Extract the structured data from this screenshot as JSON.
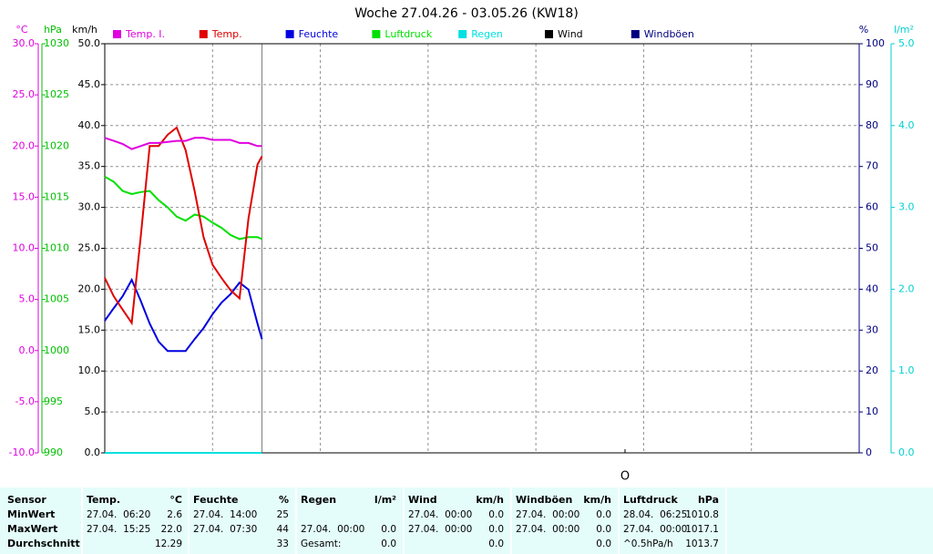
{
  "chart_data": {
    "type": "line",
    "title": "Woche 27.04.26 - 03.05.26 (KW18)",
    "x": [
      0,
      2,
      4,
      6,
      8,
      10,
      12,
      14,
      16,
      18,
      20,
      22,
      24,
      26,
      28,
      30,
      32,
      34,
      35
    ],
    "xlim": [
      0,
      168
    ],
    "xticks": [
      24,
      48,
      72,
      96,
      120,
      144
    ],
    "now_line": 35,
    "grid": true,
    "axes": [
      {
        "unit": "°C",
        "color": "#e000e0",
        "ylim": [
          -10,
          30
        ],
        "yticks": [
          {
            "value": -10,
            "label": "-10.0"
          },
          {
            "value": -5,
            "label": "-5.0"
          },
          {
            "value": 0,
            "label": "0.0"
          },
          {
            "value": 5,
            "label": "5.0"
          },
          {
            "value": 10,
            "label": "10.0"
          },
          {
            "value": 15,
            "label": "15.0"
          },
          {
            "value": 20,
            "label": "20.0"
          },
          {
            "value": 25,
            "label": "25.0"
          },
          {
            "value": 30,
            "label": "30.0"
          }
        ]
      },
      {
        "unit": "hPa",
        "color": "#00c000",
        "ylim": [
          990,
          1030
        ],
        "yticks": [
          990,
          995,
          1000,
          1005,
          1010,
          1015,
          1020,
          1025,
          1030
        ]
      },
      {
        "unit": "km/h",
        "color": "#000000",
        "ylim": [
          0,
          50
        ],
        "yticks": [
          {
            "value": 0,
            "label": "0.0"
          },
          {
            "value": 5,
            "label": "5.0"
          },
          {
            "value": 10,
            "label": "10.0"
          },
          {
            "value": 15,
            "label": "15.0"
          },
          {
            "value": 20,
            "label": "20.0"
          },
          {
            "value": 25,
            "label": "25.0"
          },
          {
            "value": 30,
            "label": "30.0"
          },
          {
            "value": 35,
            "label": "35.0"
          },
          {
            "value": 40,
            "label": "40.0"
          },
          {
            "value": 45,
            "label": "45.0"
          },
          {
            "value": 50,
            "label": "50.0"
          }
        ]
      },
      {
        "unit": "%",
        "color": "#000080",
        "ylim": [
          0,
          100
        ],
        "yticks": [
          0,
          10,
          20,
          30,
          40,
          50,
          60,
          70,
          80,
          90,
          100
        ]
      },
      {
        "unit": "l/m²",
        "color": "#00d0d0",
        "ylim": [
          0,
          5
        ],
        "yticks": [
          {
            "value": 0,
            "label": "0.0"
          },
          {
            "value": 1,
            "label": "1.0"
          },
          {
            "value": 2,
            "label": "2.0"
          },
          {
            "value": 3,
            "label": "3.0"
          },
          {
            "value": 4,
            "label": "4.0"
          },
          {
            "value": 5,
            "label": "5.0"
          }
        ]
      }
    ],
    "series": [
      {
        "name": "Temp. I.",
        "color": "#e000e0",
        "axis": 0,
        "values": [
          20.8,
          20.5,
          20.2,
          19.7,
          20.0,
          20.3,
          20.3,
          20.4,
          20.5,
          20.5,
          20.8,
          20.8,
          20.6,
          20.6,
          20.6,
          20.3,
          20.3,
          20.0,
          20.0
        ]
      },
      {
        "name": "Temp.",
        "color": "#e00000",
        "axis": 0,
        "values": [
          7.1,
          5.3,
          4.0,
          2.7,
          11.1,
          20.0,
          20.0,
          21.1,
          21.8,
          19.6,
          15.6,
          11.1,
          8.4,
          7.1,
          5.9,
          5.1,
          12.9,
          18.2,
          19.0
        ]
      },
      {
        "name": "Feuchte",
        "color": "#0000e0",
        "axis": 3,
        "values": [
          32.3,
          35.4,
          38.3,
          42.3,
          37.2,
          31.6,
          27.2,
          24.9,
          24.9,
          24.9,
          27.8,
          30.5,
          33.9,
          36.7,
          38.8,
          41.6,
          39.9,
          31.6,
          27.8
        ]
      },
      {
        "name": "Luftdruck",
        "color": "#00e000",
        "axis": 1,
        "values": [
          1017.0,
          1016.5,
          1015.6,
          1015.3,
          1015.5,
          1015.6,
          1014.7,
          1014.0,
          1013.1,
          1012.7,
          1013.3,
          1013.1,
          1012.5,
          1012.0,
          1011.3,
          1010.9,
          1011.1,
          1011.1,
          1010.9
        ]
      },
      {
        "name": "Regen",
        "color": "#00e0e0",
        "axis": 4,
        "values": [
          0,
          0,
          0,
          0,
          0,
          0,
          0,
          0,
          0,
          0,
          0,
          0,
          0,
          0,
          0,
          0,
          0,
          0,
          0
        ]
      },
      {
        "name": "Wind",
        "color": "#000000",
        "axis": 2,
        "values": [
          0,
          0,
          0,
          0,
          0,
          0,
          0,
          0,
          0,
          0,
          0,
          0,
          0,
          0,
          0,
          0,
          0,
          0,
          0
        ]
      },
      {
        "name": "Windböen",
        "color": "#000080",
        "axis": 2,
        "values": [
          0,
          0,
          0,
          0,
          0,
          0,
          0,
          0,
          0,
          0,
          0,
          0,
          0,
          0,
          0,
          0,
          0,
          0,
          0
        ]
      }
    ],
    "annotation": "O"
  },
  "table": {
    "sensor_header": "Sensor",
    "columns": [
      {
        "name": "Temp.",
        "unit": "°C"
      },
      {
        "name": "Feuchte",
        "unit": "%"
      },
      {
        "name": "Regen",
        "unit": "l/m²"
      },
      {
        "name": "Wind",
        "unit": "km/h"
      },
      {
        "name": "Windböen",
        "unit": "km/h"
      },
      {
        "name": "Luftdruck",
        "unit": "hPa"
      }
    ],
    "rows": [
      {
        "label": "MinWert",
        "cells": [
          [
            "27.04.  06:20",
            "2.6"
          ],
          [
            "27.04.  14:00",
            "25"
          ],
          [
            null,
            null
          ],
          [
            "27.04.  00:00",
            "0.0"
          ],
          [
            "27.04.  00:00",
            "0.0"
          ],
          [
            "28.04.  06:25",
            "1010.8"
          ]
        ]
      },
      {
        "label": "MaxWert",
        "cells": [
          [
            "27.04.  15:25",
            "22.0"
          ],
          [
            "27.04.  07:30",
            "44"
          ],
          [
            "27.04.  00:00",
            "0.0"
          ],
          [
            "27.04.  00:00",
            "0.0"
          ],
          [
            "27.04.  00:00",
            "0.0"
          ],
          [
            "27.04.  00:00",
            "1017.1"
          ]
        ]
      },
      {
        "label": "Durchschnitt",
        "cells": [
          [
            null,
            "12.29"
          ],
          [
            null,
            "33"
          ],
          [
            "Gesamt:",
            "0.0"
          ],
          [
            null,
            "0.0"
          ],
          [
            null,
            "0.0"
          ],
          [
            "^0.5hPa/h",
            "1013.7"
          ]
        ]
      }
    ]
  }
}
